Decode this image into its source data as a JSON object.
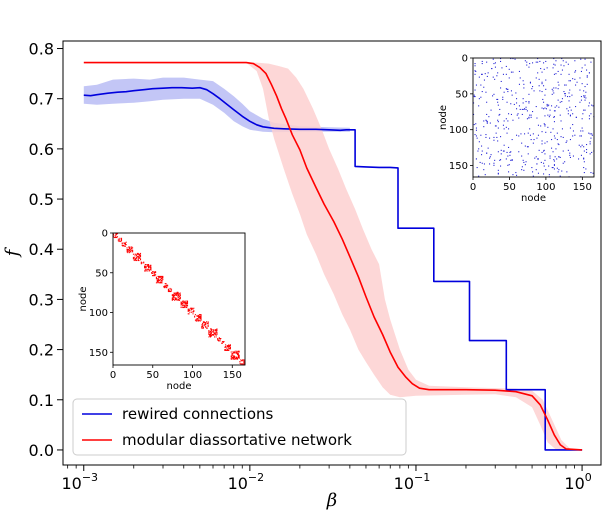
{
  "chart_data": {
    "type": "line",
    "xlabel": "β",
    "ylabel": "f",
    "xscale": "log",
    "xlim": [
      0.00075,
      1.3
    ],
    "ylim": [
      -0.03,
      0.815
    ],
    "x_ticks": [
      {
        "value": 0.001,
        "base": "10",
        "exp": "−3"
      },
      {
        "value": 0.01,
        "base": "10",
        "exp": "−2"
      },
      {
        "value": 0.1,
        "base": "10",
        "exp": "−1"
      },
      {
        "value": 1,
        "base": "10",
        "exp": "0"
      }
    ],
    "y_ticks": [
      {
        "value": 0.0,
        "label": "0.0"
      },
      {
        "value": 0.1,
        "label": "0.1"
      },
      {
        "value": 0.2,
        "label": "0.2"
      },
      {
        "value": 0.3,
        "label": "0.3"
      },
      {
        "value": 0.4,
        "label": "0.4"
      },
      {
        "value": 0.5,
        "label": "0.5"
      },
      {
        "value": 0.6,
        "label": "0.6"
      },
      {
        "value": 0.7,
        "label": "0.7"
      },
      {
        "value": 0.8,
        "label": "0.8"
      }
    ],
    "legend_position": "lower-left",
    "series": [
      {
        "name": "rewired connections",
        "color": "#0000dd",
        "band_color": "#b8bcf4",
        "points": [
          [
            0.001,
            0.707
          ],
          [
            0.0011,
            0.706
          ],
          [
            0.0012,
            0.708
          ],
          [
            0.0014,
            0.711
          ],
          [
            0.0016,
            0.713
          ],
          [
            0.0018,
            0.714
          ],
          [
            0.002,
            0.716
          ],
          [
            0.0023,
            0.718
          ],
          [
            0.0026,
            0.72
          ],
          [
            0.003,
            0.721
          ],
          [
            0.0034,
            0.722
          ],
          [
            0.0039,
            0.722
          ],
          [
            0.0045,
            0.721
          ],
          [
            0.005,
            0.722
          ],
          [
            0.0055,
            0.718
          ],
          [
            0.006,
            0.71
          ],
          [
            0.0066,
            0.7
          ],
          [
            0.0072,
            0.69
          ],
          [
            0.008,
            0.678
          ],
          [
            0.009,
            0.665
          ],
          [
            0.01,
            0.655
          ],
          [
            0.011,
            0.648
          ],
          [
            0.012,
            0.644
          ],
          [
            0.014,
            0.641
          ],
          [
            0.016,
            0.64
          ],
          [
            0.02,
            0.639
          ],
          [
            0.025,
            0.639
          ],
          [
            0.03,
            0.638
          ],
          [
            0.035,
            0.637
          ],
          [
            0.038,
            0.638
          ],
          [
            0.04,
            0.638
          ],
          [
            0.043,
            0.638
          ],
          [
            0.043,
            0.565
          ],
          [
            0.05,
            0.564
          ],
          [
            0.06,
            0.563
          ],
          [
            0.07,
            0.563
          ],
          [
            0.078,
            0.562
          ],
          [
            0.078,
            0.442
          ],
          [
            0.1,
            0.442
          ],
          [
            0.128,
            0.442
          ],
          [
            0.128,
            0.336
          ],
          [
            0.16,
            0.336
          ],
          [
            0.2,
            0.336
          ],
          [
            0.21,
            0.336
          ],
          [
            0.21,
            0.218
          ],
          [
            0.25,
            0.218
          ],
          [
            0.28,
            0.218
          ],
          [
            0.35,
            0.218
          ],
          [
            0.35,
            0.12
          ],
          [
            0.45,
            0.12
          ],
          [
            0.56,
            0.12
          ],
          [
            0.6,
            0.12
          ],
          [
            0.6,
            0.0
          ],
          [
            0.75,
            0.0
          ],
          [
            1.0,
            0.0
          ]
        ],
        "band_upper": [
          [
            0.001,
            0.725
          ],
          [
            0.0012,
            0.728
          ],
          [
            0.0015,
            0.738
          ],
          [
            0.002,
            0.74
          ],
          [
            0.0025,
            0.738
          ],
          [
            0.003,
            0.742
          ],
          [
            0.004,
            0.742
          ],
          [
            0.005,
            0.738
          ],
          [
            0.006,
            0.735
          ],
          [
            0.007,
            0.72
          ],
          [
            0.008,
            0.705
          ],
          [
            0.009,
            0.69
          ],
          [
            0.01,
            0.675
          ],
          [
            0.012,
            0.66
          ],
          [
            0.014,
            0.652
          ],
          [
            0.02,
            0.645
          ],
          [
            0.03,
            0.643
          ],
          [
            0.04,
            0.642
          ]
        ],
        "band_lower": [
          [
            0.001,
            0.69
          ],
          [
            0.0012,
            0.688
          ],
          [
            0.0015,
            0.69
          ],
          [
            0.002,
            0.692
          ],
          [
            0.0025,
            0.695
          ],
          [
            0.003,
            0.698
          ],
          [
            0.004,
            0.7
          ],
          [
            0.005,
            0.7
          ],
          [
            0.006,
            0.688
          ],
          [
            0.007,
            0.672
          ],
          [
            0.008,
            0.655
          ],
          [
            0.009,
            0.645
          ],
          [
            0.01,
            0.638
          ],
          [
            0.012,
            0.634
          ],
          [
            0.014,
            0.633
          ],
          [
            0.02,
            0.634
          ],
          [
            0.03,
            0.634
          ],
          [
            0.04,
            0.634
          ]
        ]
      },
      {
        "name": "modular diassortative network",
        "color": "#ff0000",
        "band_color": "#fdd0d0",
        "points": [
          [
            0.001,
            0.772
          ],
          [
            0.002,
            0.772
          ],
          [
            0.004,
            0.772
          ],
          [
            0.008,
            0.772
          ],
          [
            0.0095,
            0.772
          ],
          [
            0.0105,
            0.77
          ],
          [
            0.0115,
            0.762
          ],
          [
            0.0125,
            0.75
          ],
          [
            0.0135,
            0.728
          ],
          [
            0.0145,
            0.705
          ],
          [
            0.0155,
            0.68
          ],
          [
            0.0165,
            0.66
          ],
          [
            0.018,
            0.628
          ],
          [
            0.02,
            0.598
          ],
          [
            0.022,
            0.562
          ],
          [
            0.025,
            0.523
          ],
          [
            0.028,
            0.49
          ],
          [
            0.032,
            0.455
          ],
          [
            0.036,
            0.42
          ],
          [
            0.04,
            0.385
          ],
          [
            0.045,
            0.345
          ],
          [
            0.05,
            0.305
          ],
          [
            0.056,
            0.265
          ],
          [
            0.063,
            0.23
          ],
          [
            0.07,
            0.195
          ],
          [
            0.078,
            0.165
          ],
          [
            0.087,
            0.145
          ],
          [
            0.095,
            0.132
          ],
          [
            0.105,
            0.123
          ],
          [
            0.12,
            0.12
          ],
          [
            0.15,
            0.12
          ],
          [
            0.2,
            0.12
          ],
          [
            0.3,
            0.119
          ],
          [
            0.4,
            0.116
          ],
          [
            0.5,
            0.108
          ],
          [
            0.56,
            0.09
          ],
          [
            0.62,
            0.06
          ],
          [
            0.68,
            0.03
          ],
          [
            0.74,
            0.01
          ],
          [
            0.8,
            0.002
          ],
          [
            1.0,
            0.0
          ]
        ],
        "band_upper": [
          [
            0.0095,
            0.772
          ],
          [
            0.011,
            0.772
          ],
          [
            0.013,
            0.77
          ],
          [
            0.015,
            0.765
          ],
          [
            0.017,
            0.76
          ],
          [
            0.019,
            0.742
          ],
          [
            0.021,
            0.72
          ],
          [
            0.024,
            0.68
          ],
          [
            0.027,
            0.64
          ],
          [
            0.03,
            0.6
          ],
          [
            0.034,
            0.56
          ],
          [
            0.038,
            0.52
          ],
          [
            0.043,
            0.48
          ],
          [
            0.048,
            0.44
          ],
          [
            0.054,
            0.4
          ],
          [
            0.06,
            0.37
          ],
          [
            0.065,
            0.3
          ],
          [
            0.07,
            0.26
          ],
          [
            0.08,
            0.2
          ],
          [
            0.09,
            0.16
          ],
          [
            0.1,
            0.14
          ],
          [
            0.12,
            0.128
          ],
          [
            0.2,
            0.125
          ],
          [
            0.4,
            0.122
          ],
          [
            0.5,
            0.118
          ],
          [
            0.58,
            0.1
          ],
          [
            0.66,
            0.06
          ],
          [
            0.75,
            0.02
          ],
          [
            0.85,
            0.002
          ]
        ],
        "band_lower": [
          [
            0.0095,
            0.772
          ],
          [
            0.011,
            0.755
          ],
          [
            0.012,
            0.72
          ],
          [
            0.013,
            0.66
          ],
          [
            0.014,
            0.62
          ],
          [
            0.016,
            0.56
          ],
          [
            0.018,
            0.51
          ],
          [
            0.02,
            0.47
          ],
          [
            0.022,
            0.43
          ],
          [
            0.025,
            0.39
          ],
          [
            0.028,
            0.35
          ],
          [
            0.032,
            0.31
          ],
          [
            0.036,
            0.27
          ],
          [
            0.04,
            0.24
          ],
          [
            0.045,
            0.2
          ],
          [
            0.05,
            0.175
          ],
          [
            0.056,
            0.15
          ],
          [
            0.063,
            0.125
          ],
          [
            0.07,
            0.11
          ],
          [
            0.08,
            0.105
          ],
          [
            0.1,
            0.108
          ],
          [
            0.2,
            0.11
          ],
          [
            0.3,
            0.111
          ],
          [
            0.4,
            0.105
          ],
          [
            0.5,
            0.085
          ],
          [
            0.56,
            0.05
          ],
          [
            0.62,
            0.015
          ],
          [
            0.7,
            0.0
          ],
          [
            0.85,
            0.0
          ]
        ]
      }
    ],
    "insets": [
      {
        "position": "top-right",
        "pattern": "random",
        "color": "#2b2bd6",
        "xlabel": "node",
        "ylabel": "node",
        "x_ticks": [
          0,
          50,
          100,
          150
        ],
        "y_ticks": [
          0,
          50,
          100,
          150
        ],
        "n_nodes": 166
      },
      {
        "position": "middle-left",
        "pattern": "block-diagonal",
        "color": "#ff0000",
        "xlabel": "node",
        "ylabel": "node",
        "x_ticks": [
          0,
          50,
          100,
          150
        ],
        "y_ticks": [
          0,
          50,
          100,
          150
        ],
        "n_nodes": 166
      }
    ]
  }
}
